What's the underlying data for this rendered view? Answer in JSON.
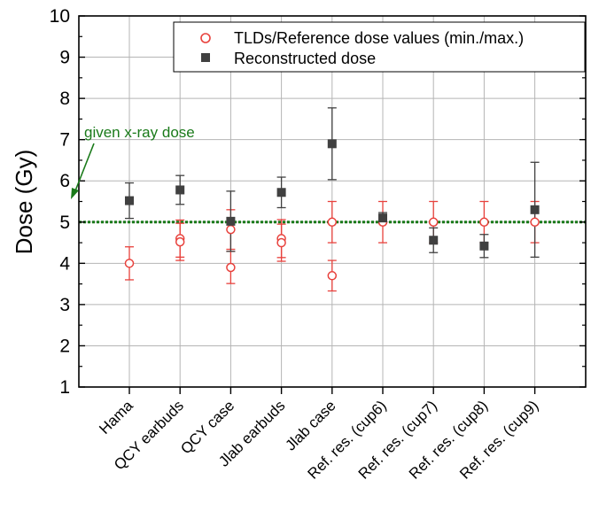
{
  "chart_data": {
    "type": "scatter",
    "ylabel": "Dose (Gy)",
    "xlabel": "",
    "ylim": [
      1,
      10
    ],
    "yticks": [
      "1",
      "2",
      "3",
      "4",
      "5",
      "6",
      "7",
      "8",
      "9",
      "10"
    ],
    "grid": true,
    "legend_position": "top-right",
    "categories": [
      "Hama",
      "QCY earbuds",
      "QCY case",
      "Jlab earbuds",
      "Jlab case",
      "Ref. res. (cup6)",
      "Ref. res. (cup7)",
      "Ref. res. (cup8)",
      "Ref. res. (cup9)"
    ],
    "reference_line": {
      "y": 5.0,
      "label": "given x-ray dose",
      "color": "#1a7a1a"
    },
    "series": [
      {
        "name": "TLDs/Reference dose values (min./max.)",
        "marker": "open-circle",
        "color": "#e8413c",
        "points": [
          {
            "category": "Hama",
            "y": 4.0,
            "err": 0.4
          },
          {
            "category": "QCY earbuds",
            "y": 4.6,
            "err": 0.45
          },
          {
            "category": "QCY earbuds",
            "y": 4.52,
            "err": 0.45
          },
          {
            "category": "QCY case",
            "y": 4.82,
            "err": 0.48
          },
          {
            "category": "QCY case",
            "y": 3.9,
            "err": 0.39
          },
          {
            "category": "Jlab earbuds",
            "y": 4.6,
            "err": 0.46
          },
          {
            "category": "Jlab earbuds",
            "y": 4.5,
            "err": 0.45
          },
          {
            "category": "Jlab case",
            "y": 5.0,
            "err": 0.5
          },
          {
            "category": "Jlab case",
            "y": 3.7,
            "err": 0.37
          },
          {
            "category": "Ref. res. (cup6)",
            "y": 5.0,
            "err": 0.5
          },
          {
            "category": "Ref. res. (cup7)",
            "y": 5.0,
            "err": 0.5
          },
          {
            "category": "Ref. res. (cup8)",
            "y": 5.0,
            "err": 0.5
          },
          {
            "category": "Ref. res. (cup9)",
            "y": 5.0,
            "err": 0.5
          }
        ]
      },
      {
        "name": "Reconstructed dose",
        "marker": "filled-square",
        "color": "#404040",
        "points": [
          {
            "category": "Hama",
            "y": 5.52,
            "err": 0.43
          },
          {
            "category": "QCY earbuds",
            "y": 5.78,
            "err": 0.35
          },
          {
            "category": "QCY case",
            "y": 5.02,
            "err": 0.73
          },
          {
            "category": "Jlab earbuds",
            "y": 5.72,
            "err": 0.37
          },
          {
            "category": "Jlab case",
            "y": 6.9,
            "err": 0.87
          },
          {
            "category": "Ref. res. (cup6)",
            "y": 5.1,
            "err": 0.13
          },
          {
            "category": "Ref. res. (cup7)",
            "y": 4.56,
            "err": 0.3
          },
          {
            "category": "Ref. res. (cup8)",
            "y": 4.42,
            "err": 0.28
          },
          {
            "category": "Ref. res. (cup9)",
            "y": 5.3,
            "err": 1.15
          }
        ]
      }
    ]
  }
}
